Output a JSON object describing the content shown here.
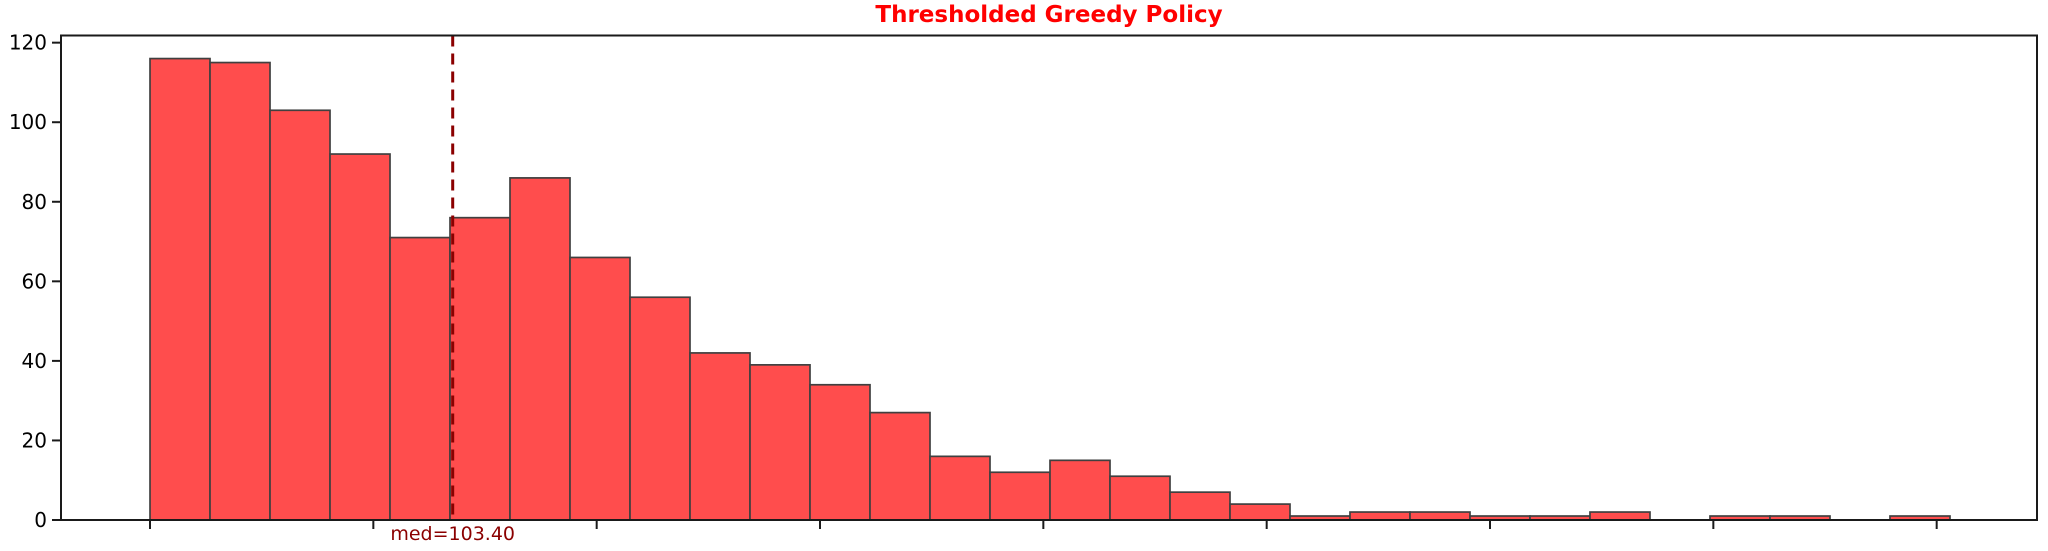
{
  "chart_data": {
    "type": "bar",
    "subtype": "histogram",
    "title": "Thresholded Greedy Policy",
    "title_color": "#ff0000",
    "xlabel": "",
    "ylabel": "",
    "values": [
      116,
      115,
      103,
      92,
      71,
      76,
      86,
      66,
      56,
      42,
      39,
      34,
      27,
      16,
      12,
      15,
      11,
      7,
      4,
      1,
      2,
      2,
      1,
      1,
      2,
      0,
      1,
      1,
      0,
      1
    ],
    "n_bins": 30,
    "total_count": 1000,
    "yticks": [
      0,
      20,
      40,
      60,
      80,
      100,
      120
    ],
    "ylim": [
      0,
      121.8
    ],
    "xticks": {
      "count": 9,
      "labels_visible": false
    },
    "grid": false,
    "legend": false,
    "median": {
      "label": "med=103.40",
      "value": 103.4
    },
    "colors": {
      "bar_fill": "#ff4d4d",
      "bar_edge": "#404040",
      "median": "#8b0000",
      "axis": "#1a1a1a",
      "tick_label": "#000000"
    },
    "layout": {
      "first_bin_left_fraction": 0.045045,
      "bin_width_fraction": 0.030364,
      "xtick_start_fraction": 0.045045,
      "xtick_step_fraction": 0.113023,
      "median_x_fraction": 0.198229
    }
  }
}
